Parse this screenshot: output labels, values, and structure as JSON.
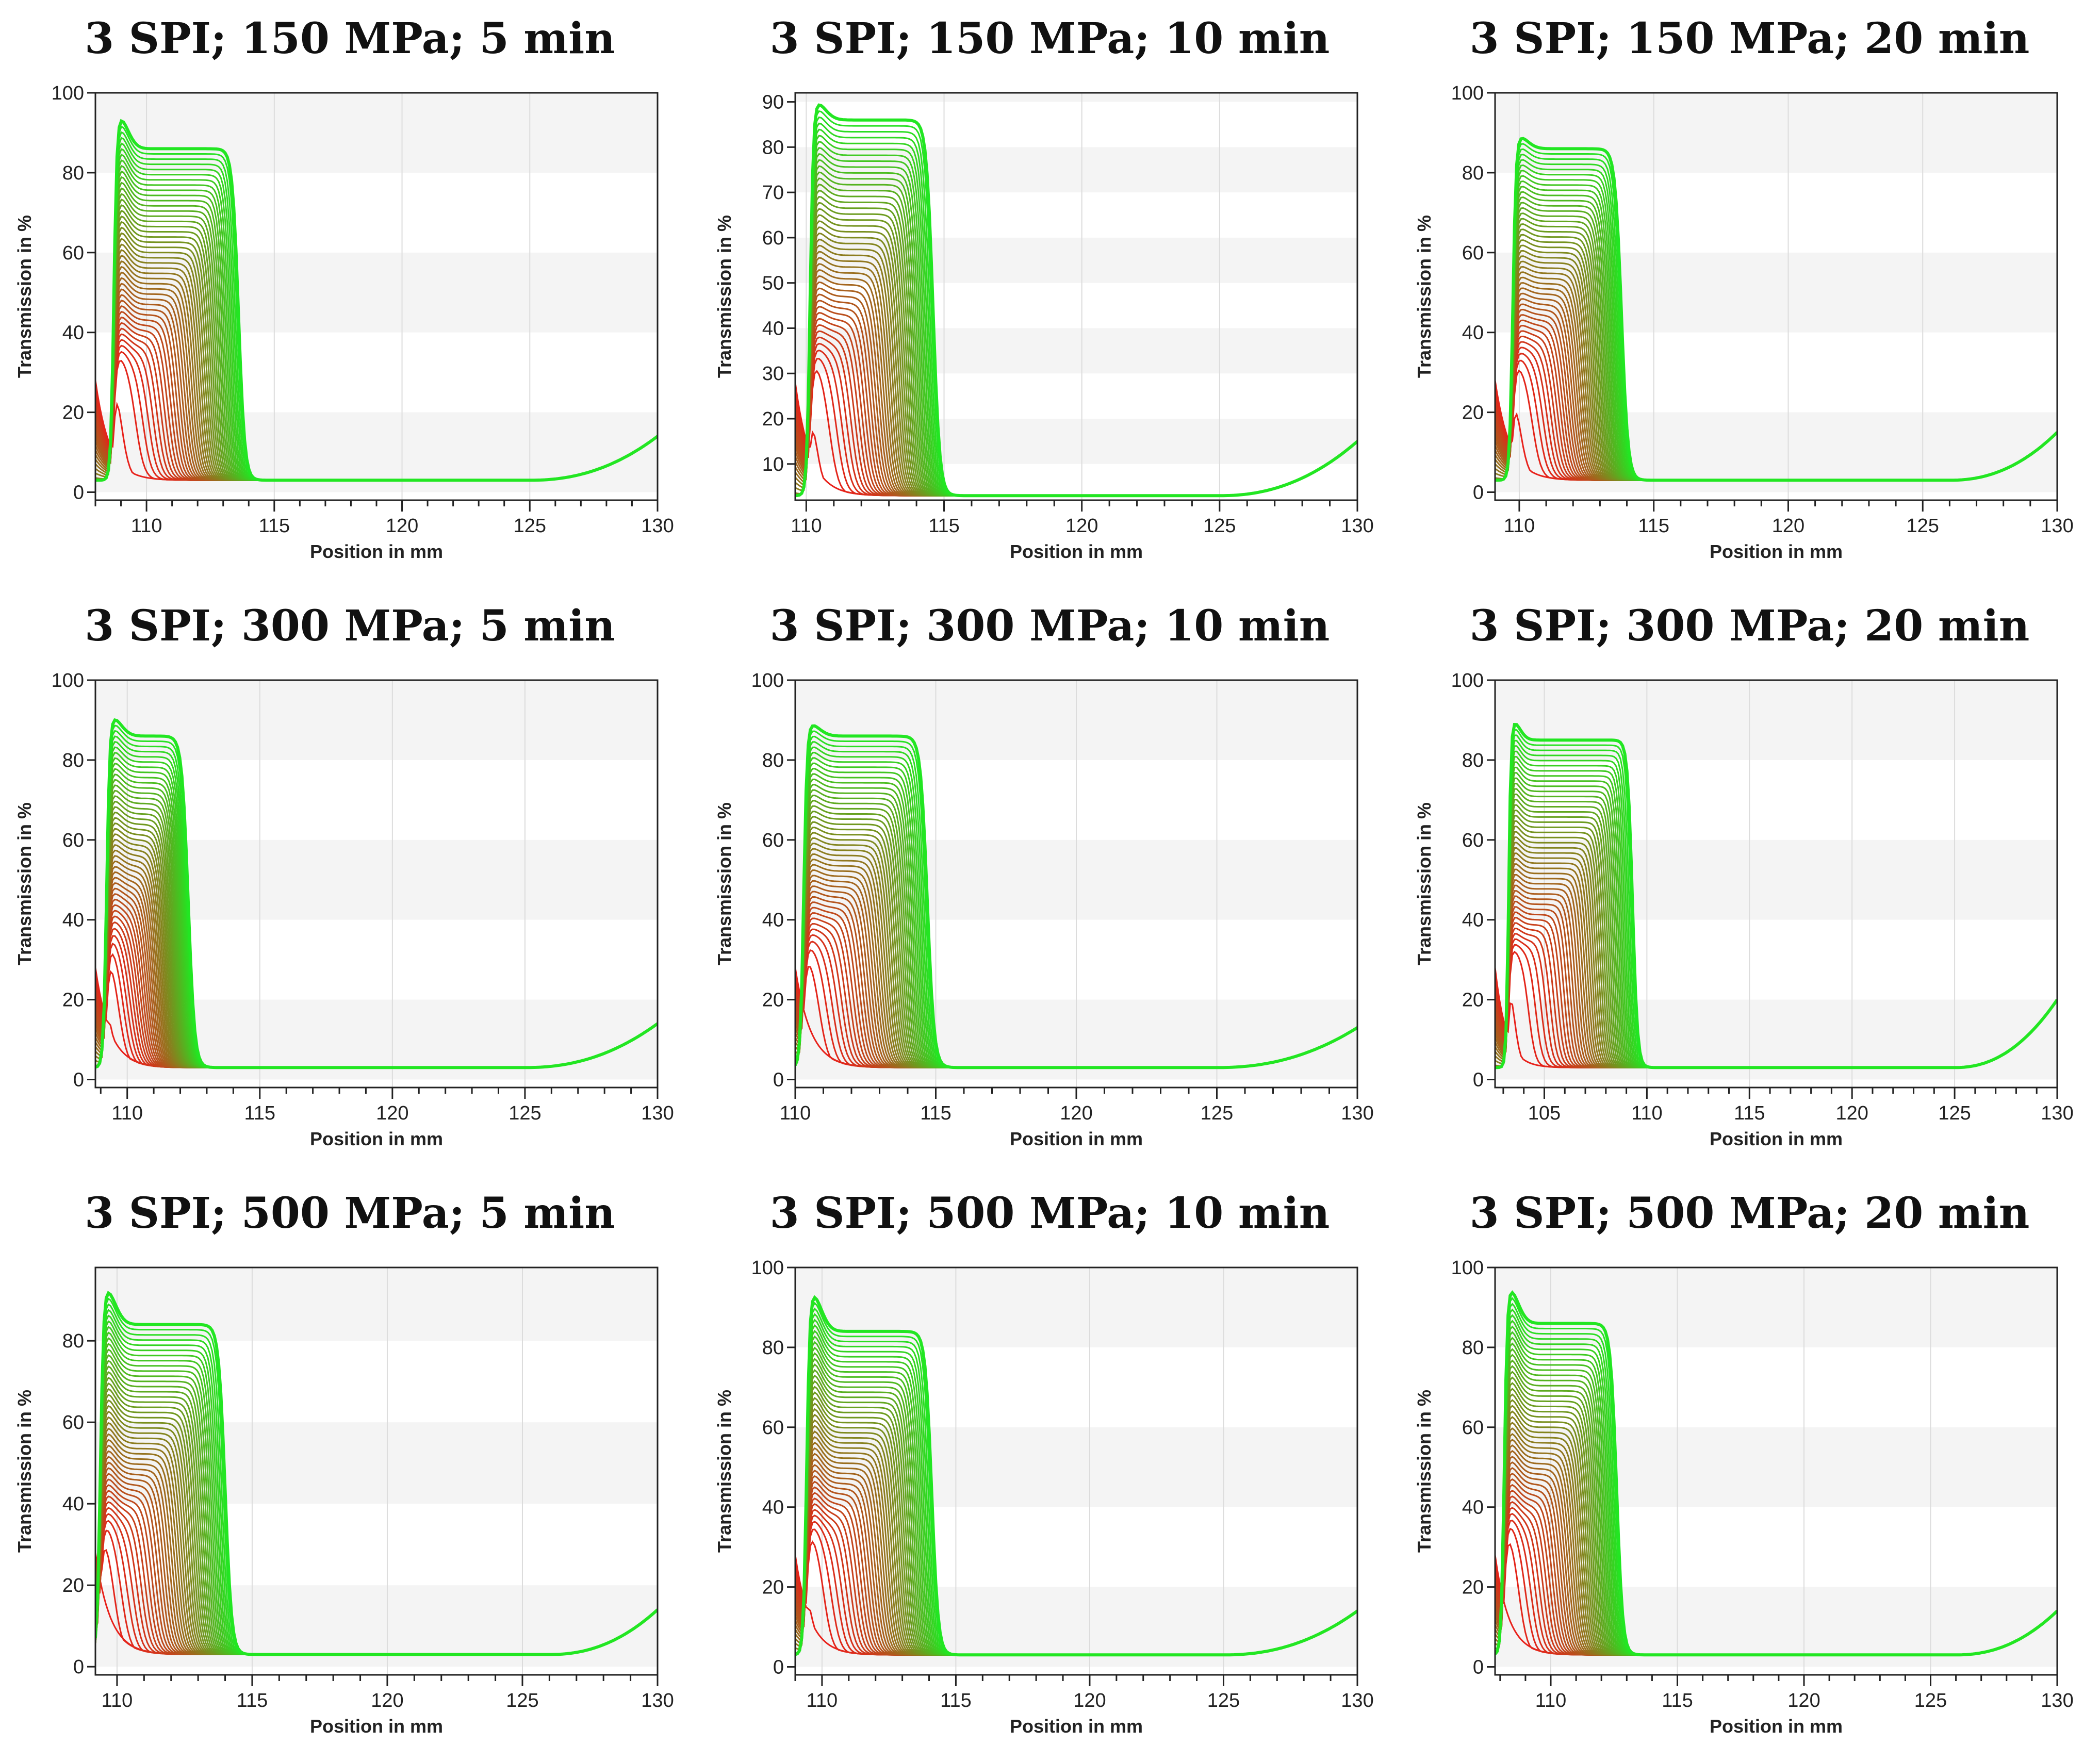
{
  "figure": {
    "y_axis_label": "Transmission in %",
    "x_axis_label": "Position in mm"
  },
  "colors": {
    "early": "#e8201a",
    "late": "#22e622",
    "band": "#f4f4f4",
    "grid": "#dcdcdc",
    "axis": "#222222"
  },
  "chart_data": [
    {
      "type": "line",
      "title": "3 SPI; 150 MPa; 5 min",
      "xlabel": "Position in mm",
      "ylabel": "Transmission in %",
      "xlim": [
        108,
        130
      ],
      "ylim": [
        -2,
        100
      ],
      "xticks": [
        110,
        115,
        120,
        125,
        130
      ],
      "yticks": [
        0,
        20,
        40,
        60,
        80,
        100
      ],
      "plateau": 86,
      "peak": 96,
      "front_start": 109.0,
      "front_final": 113.6,
      "baseline": 3,
      "end_value": 14,
      "curve_rise_start": 125
    },
    {
      "type": "line",
      "title": "3 SPI; 150 MPa; 10 min",
      "xlabel": "Position in mm",
      "ylabel": "Transmission in %",
      "xlim": [
        109.6,
        130
      ],
      "ylim": [
        2,
        92
      ],
      "xticks": [
        110,
        115,
        120,
        125,
        130
      ],
      "yticks": [
        10,
        20,
        30,
        40,
        50,
        60,
        70,
        80,
        90
      ],
      "plateau": 86,
      "peak": 91,
      "front_start": 110.3,
      "front_final": 114.6,
      "baseline": 3,
      "end_value": 15,
      "curve_rise_start": 125
    },
    {
      "type": "line",
      "title": "3 SPI; 150 MPa; 20 min",
      "xlabel": "Position in mm",
      "ylabel": "Transmission in %",
      "xlim": [
        109.1,
        130
      ],
      "ylim": [
        -2,
        100
      ],
      "xticks": [
        110,
        115,
        120,
        125,
        130
      ],
      "yticks": [
        0,
        20,
        40,
        60,
        80,
        100
      ],
      "plateau": 86,
      "peak": 90,
      "front_start": 110.0,
      "front_final": 113.8,
      "baseline": 3,
      "end_value": 15,
      "curve_rise_start": 126
    },
    {
      "type": "line",
      "title": "3 SPI; 300 MPa; 5 min",
      "xlabel": "Position in mm",
      "ylabel": "Transmission in %",
      "xlim": [
        108.8,
        130
      ],
      "ylim": [
        -2,
        100
      ],
      "xticks": [
        110,
        115,
        120,
        125,
        130
      ],
      "yticks": [
        0,
        20,
        40,
        60,
        80,
        100
      ],
      "plateau": 86,
      "peak": 92,
      "front_start": 109.3,
      "front_final": 112.3,
      "baseline": 3,
      "end_value": 14,
      "curve_rise_start": 125
    },
    {
      "type": "line",
      "title": "3 SPI; 300 MPa; 10 min",
      "xlabel": "Position in mm",
      "ylabel": "Transmission in %",
      "xlim": [
        110,
        130
      ],
      "ylim": [
        -2,
        100
      ],
      "xticks": [
        110,
        115,
        120,
        125,
        130
      ],
      "yticks": [
        0,
        20,
        40,
        60,
        80,
        100
      ],
      "plateau": 86,
      "peak": 90,
      "front_start": 110.3,
      "front_final": 114.7,
      "baseline": 3,
      "end_value": 13,
      "curve_rise_start": 125
    },
    {
      "type": "line",
      "title": "3 SPI; 300 MPa; 20 min",
      "xlabel": "Position in mm",
      "ylabel": "Transmission in %",
      "xlim": [
        102.6,
        130
      ],
      "ylim": [
        -2,
        100
      ],
      "xticks": [
        105,
        110,
        115,
        120,
        125,
        130
      ],
      "yticks": [
        0,
        20,
        40,
        60,
        80,
        100
      ],
      "plateau": 85,
      "peak": 91,
      "front_start": 103.5,
      "front_final": 109.3,
      "baseline": 3,
      "end_value": 20,
      "curve_rise_start": 125
    },
    {
      "type": "line",
      "title": "3 SPI; 500 MPa; 5 min",
      "xlabel": "Position in mm",
      "ylabel": "Transmission in %",
      "xlim": [
        109.2,
        130
      ],
      "ylim": [
        -2,
        98
      ],
      "xticks": [
        110,
        115,
        120,
        125,
        130
      ],
      "yticks": [
        0,
        20,
        40,
        60,
        80
      ],
      "plateau": 84,
      "peak": 95,
      "front_start": 109.3,
      "front_final": 114.0,
      "baseline": 3,
      "end_value": 14,
      "curve_rise_start": 126
    },
    {
      "type": "line",
      "title": "3 SPI; 500 MPa; 10 min",
      "xlabel": "Position in mm",
      "ylabel": "Transmission in %",
      "xlim": [
        109.0,
        130
      ],
      "ylim": [
        -2,
        100
      ],
      "xticks": [
        110,
        115,
        120,
        125,
        130
      ],
      "yticks": [
        0,
        20,
        40,
        60,
        80,
        100
      ],
      "plateau": 84,
      "peak": 96,
      "front_start": 109.5,
      "front_final": 114.1,
      "baseline": 3,
      "end_value": 14,
      "curve_rise_start": 125
    },
    {
      "type": "line",
      "title": "3 SPI; 500 MPa; 20 min",
      "xlabel": "Position in mm",
      "ylabel": "Transmission in %",
      "xlim": [
        107.8,
        130
      ],
      "ylim": [
        -2,
        100
      ],
      "xticks": [
        110,
        115,
        120,
        125,
        130
      ],
      "yticks": [
        0,
        20,
        40,
        60,
        80,
        100
      ],
      "plateau": 86,
      "peak": 97,
      "front_start": 108.2,
      "front_final": 112.6,
      "baseline": 3,
      "end_value": 14,
      "curve_rise_start": 126
    }
  ]
}
